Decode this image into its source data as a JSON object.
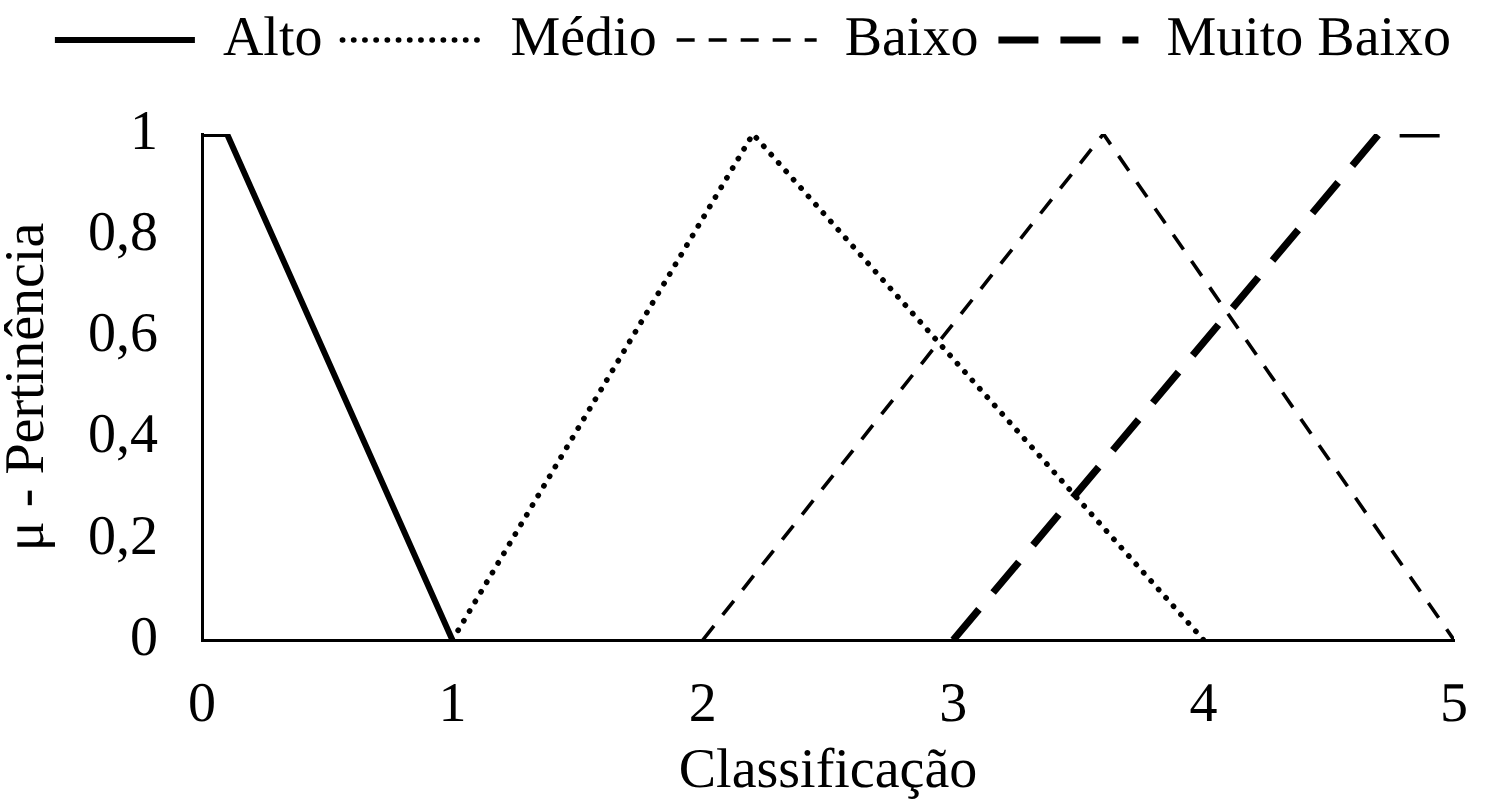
{
  "chart_data": {
    "type": "line",
    "xlabel": "Classificação",
    "ylabel": "μ - Pertinência",
    "xlim": [
      0,
      5
    ],
    "xticks": [
      0,
      1,
      2,
      3,
      4,
      5
    ],
    "ylim": [
      0,
      1
    ],
    "yticks": [
      0,
      {
        "value": 0.2,
        "label": "0,2"
      },
      {
        "value": 0.4,
        "label": "0,4"
      },
      {
        "value": 0.6,
        "label": "0,6"
      },
      {
        "value": 0.8,
        "label": "0,8"
      },
      1
    ],
    "series": [
      {
        "name": "Alto",
        "color": "#000000",
        "line_style": "solid",
        "x": [
          0,
          0.1,
          1
        ],
        "values": [
          1,
          1,
          0
        ]
      },
      {
        "name": "Médio",
        "color": "#000000",
        "line_style": "dotted",
        "x": [
          1,
          2.2,
          4
        ],
        "values": [
          0,
          1,
          0
        ]
      },
      {
        "name": "Baixo",
        "color": "#000000",
        "line_style": "dashed",
        "x": [
          2,
          3.6,
          5
        ],
        "values": [
          0,
          1,
          0
        ]
      },
      {
        "name": "Muito Baixo",
        "color": "#000000",
        "line_style": "dashed",
        "x": [
          3,
          4.7,
          5
        ],
        "values": [
          0,
          1,
          1
        ]
      }
    ],
    "legend": "top",
    "grid": false,
    "marker": "none"
  }
}
